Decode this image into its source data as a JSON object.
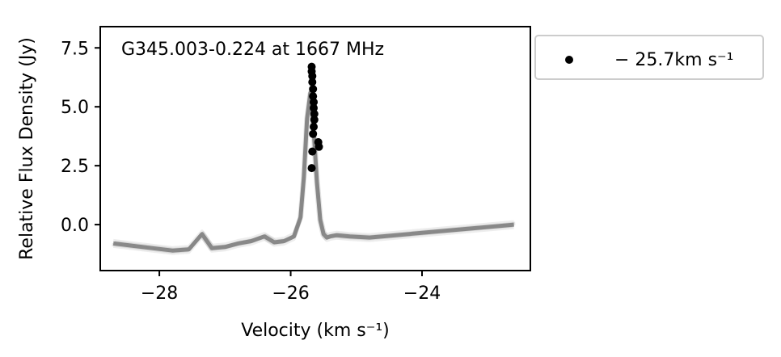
{
  "chart_data": {
    "type": "line",
    "xlabel": "Velocity (km s⁻¹)",
    "ylabel": "Relative Flux Density (Jy)",
    "annotation": "G345.003-0.224 at 1667 MHz",
    "xlim": [
      -28.9,
      -22.35
    ],
    "ylim": [
      -1.95,
      8.4
    ],
    "xticks": [
      -28,
      -26,
      -24
    ],
    "xtick_labels": [
      "−28",
      "−26",
      "−24"
    ],
    "yticks": [
      0.0,
      2.5,
      5.0,
      7.5
    ],
    "ytick_labels": [
      "0.0",
      "2.5",
      "5.0",
      "7.5"
    ],
    "grid": false,
    "legend_position": "outside-right",
    "legend": [
      {
        "label": "− 25.7km s⁻¹",
        "marker": "dot",
        "color": "#000000"
      }
    ],
    "series": [
      {
        "color": "#808080",
        "x": [
          -28.7,
          -28.4,
          -28.1,
          -27.8,
          -27.55,
          -27.35,
          -27.2,
          -27.0,
          -26.8,
          -26.6,
          -26.4,
          -26.25,
          -26.1,
          -25.95,
          -25.85,
          -25.8,
          -25.75,
          -25.7,
          -25.65,
          -25.6,
          -25.55,
          -25.5,
          -25.45,
          -25.4,
          -25.3,
          -25.1,
          -24.8,
          -24.4,
          -24.0,
          -23.6,
          -23.2,
          -22.8,
          -22.6
        ],
        "y": [
          -0.8,
          -0.9,
          -1.0,
          -1.1,
          -1.05,
          -0.4,
          -1.0,
          -0.95,
          -0.8,
          -0.7,
          -0.5,
          -0.75,
          -0.7,
          -0.5,
          0.3,
          2.0,
          4.5,
          5.6,
          4.0,
          1.8,
          0.2,
          -0.4,
          -0.55,
          -0.5,
          -0.45,
          -0.5,
          -0.55,
          -0.45,
          -0.35,
          -0.25,
          -0.15,
          -0.05,
          0.0
        ]
      }
    ],
    "peak_points": {
      "color": "#000000",
      "x": [
        -25.68,
        -25.68,
        -25.67,
        -25.67,
        -25.66,
        -25.66,
        -25.65,
        -25.65,
        -25.64,
        -25.64,
        -25.65,
        -25.66,
        -25.67,
        -25.68,
        -25.58,
        -25.57
      ],
      "y": [
        6.7,
        6.5,
        6.3,
        6.05,
        5.75,
        5.45,
        5.2,
        4.95,
        4.7,
        4.45,
        4.15,
        3.85,
        3.1,
        2.4,
        3.5,
        3.3
      ]
    }
  }
}
